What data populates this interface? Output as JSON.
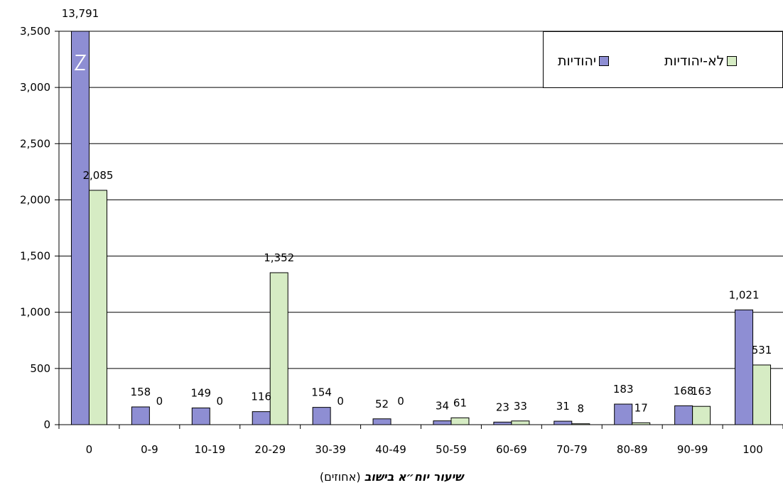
{
  "chart_data": {
    "type": "bar",
    "categories": [
      "0",
      "0-9",
      "10-19",
      "20-29",
      "30-39",
      "40-49",
      "50-59",
      "60-69",
      "70-79",
      "80-89",
      "90-99",
      "100"
    ],
    "series": [
      {
        "name": "יהודיות",
        "color": "#8e8ed3",
        "values": [
          13791,
          158,
          149,
          116,
          154,
          52,
          34,
          23,
          31,
          183,
          168,
          1021
        ],
        "labels": [
          "13,791",
          "158",
          "149",
          "116",
          "154",
          "52",
          "34",
          "23",
          "31",
          "183",
          "168",
          "1,021"
        ]
      },
      {
        "name": "לא-יהודיות",
        "color": "#d6ecc4",
        "values": [
          2085,
          0,
          0,
          1352,
          0,
          0,
          61,
          33,
          8,
          17,
          163,
          531
        ],
        "labels": [
          "2,085",
          "0",
          "0",
          "1,352",
          "0",
          "0",
          "61",
          "33",
          "8",
          "17",
          "163",
          "531"
        ]
      }
    ],
    "yticks": [
      0,
      500,
      1000,
      1500,
      2000,
      2500,
      3000,
      3500
    ],
    "ytick_labels": [
      "0",
      "500",
      "1,000",
      "1,500",
      "2,000",
      "2,500",
      "3,000",
      "3,500"
    ],
    "ylim": [
      0,
      3500
    ],
    "axis_break": "first bar exceeds axis (13,791)",
    "grid": true,
    "legend_position": "top-right",
    "xlabel_bold": "שיעור יוח״א בישוב",
    "xlabel_rest": " (אחוזים)",
    "ylabel": ""
  }
}
